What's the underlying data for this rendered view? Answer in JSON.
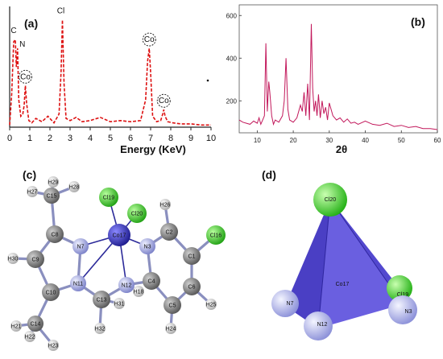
{
  "panels": {
    "a": "(a)",
    "b": "(b)",
    "c": "(c)",
    "d": "(d)"
  },
  "chart_data": [
    {
      "type": "line",
      "panel": "(a)",
      "xlabel": "Energy (KeV)",
      "ylabel": "",
      "xlim": [
        0,
        10
      ],
      "x_ticks": [
        "0",
        "1",
        "2",
        "3",
        "4",
        "5",
        "6",
        "7",
        "8",
        "9",
        "10"
      ],
      "line_color": "#dd1111",
      "line_style": "dashed",
      "annotations": [
        {
          "text": "C",
          "x": 0.28
        },
        {
          "text": "N",
          "x": 0.39
        },
        {
          "text": "Co",
          "x": 0.78,
          "circled": true
        },
        {
          "text": "Cl",
          "x": 2.62
        },
        {
          "text": "Co",
          "x": 6.93,
          "circled": true
        },
        {
          "text": "Co",
          "x": 7.65,
          "circled": true
        }
      ],
      "series": [
        {
          "x": [
            0.0,
            0.1,
            0.2,
            0.28,
            0.33,
            0.39,
            0.45,
            0.55,
            0.65,
            0.72,
            0.78,
            0.84,
            0.95,
            1.1,
            1.3,
            1.6,
            1.9,
            2.2,
            2.45,
            2.55,
            2.62,
            2.7,
            2.8,
            3.0,
            3.3,
            3.6,
            4.0,
            4.5,
            5.0,
            5.5,
            6.0,
            6.5,
            6.75,
            6.85,
            6.93,
            7.0,
            7.1,
            7.3,
            7.5,
            7.6,
            7.65,
            7.72,
            7.85,
            8.1,
            8.5,
            9.0,
            9.5,
            10.0
          ],
          "y": [
            0.02,
            0.3,
            0.78,
            0.8,
            0.55,
            0.72,
            0.25,
            0.1,
            0.12,
            0.2,
            0.38,
            0.22,
            0.06,
            0.04,
            0.08,
            0.05,
            0.1,
            0.04,
            0.12,
            0.5,
            0.98,
            0.4,
            0.08,
            0.06,
            0.09,
            0.05,
            0.06,
            0.09,
            0.05,
            0.06,
            0.05,
            0.06,
            0.25,
            0.6,
            0.72,
            0.5,
            0.1,
            0.05,
            0.06,
            0.12,
            0.16,
            0.1,
            0.05,
            0.04,
            0.03,
            0.03,
            0.02,
            0.02
          ]
        }
      ]
    },
    {
      "type": "line",
      "panel": "(b)",
      "xlabel": "2θ",
      "ylabel": "",
      "xlim": [
        5,
        60
      ],
      "ylim": [
        50,
        650
      ],
      "x_ticks": [
        10,
        20,
        30,
        40,
        50,
        60
      ],
      "y_ticks": [
        200,
        400,
        600
      ],
      "line_color": "#c2185b",
      "series": [
        {
          "x": [
            5,
            6,
            7,
            8,
            9,
            10,
            10.5,
            11,
            11.5,
            12,
            12.4,
            12.8,
            13.2,
            13.5,
            14,
            14.5,
            15,
            16,
            17,
            17.5,
            18,
            18.5,
            19,
            20,
            21,
            22,
            22.5,
            23,
            23.5,
            24,
            24.5,
            25,
            25.4,
            25.8,
            26.2,
            26.6,
            27,
            27.5,
            28,
            28.5,
            29,
            29.5,
            30,
            31,
            32,
            33,
            34,
            35,
            36,
            37,
            38,
            40,
            42,
            44,
            46,
            48,
            50,
            52,
            54,
            56,
            58,
            60
          ],
          "y": [
            110,
            100,
            95,
            90,
            105,
            95,
            120,
            90,
            110,
            130,
            470,
            150,
            290,
            240,
            130,
            90,
            110,
            100,
            130,
            200,
            400,
            160,
            110,
            100,
            120,
            180,
            150,
            240,
            130,
            280,
            110,
            560,
            260,
            150,
            200,
            130,
            230,
            120,
            200,
            140,
            170,
            110,
            190,
            130,
            110,
            120,
            100,
            115,
            95,
            100,
            90,
            105,
            90,
            85,
            95,
            80,
            85,
            75,
            80,
            70,
            70,
            65
          ]
        }
      ]
    }
  ],
  "molecule": {
    "atoms": [
      {
        "id": "cl19",
        "label": "Cl19",
        "kind": "cl"
      },
      {
        "id": "cl20",
        "label": "Cl20",
        "kind": "cl"
      },
      {
        "id": "co17",
        "label": "Co17",
        "kind": "co"
      },
      {
        "id": "h27",
        "label": "H27",
        "kind": "h"
      },
      {
        "id": "h29",
        "label": "H29",
        "kind": "h"
      },
      {
        "id": "h28",
        "label": "H28",
        "kind": "h"
      },
      {
        "id": "c15",
        "label": "C15",
        "kind": "c"
      },
      {
        "id": "c8",
        "label": "C8",
        "kind": "c"
      },
      {
        "id": "n7",
        "label": "N7",
        "kind": "n"
      },
      {
        "id": "c9",
        "label": "C9",
        "kind": "c"
      },
      {
        "id": "h30",
        "label": "H30",
        "kind": "h"
      },
      {
        "id": "c10",
        "label": "C10",
        "kind": "c"
      },
      {
        "id": "n11",
        "label": "N11",
        "kind": "n"
      },
      {
        "id": "c13",
        "label": "C13",
        "kind": "c"
      },
      {
        "id": "h31",
        "label": "H31",
        "kind": "h"
      },
      {
        "id": "n12",
        "label": "N12",
        "kind": "n"
      },
      {
        "id": "h18",
        "label": "H18",
        "kind": "h"
      },
      {
        "id": "h32",
        "label": "H32",
        "kind": "h"
      },
      {
        "id": "c14",
        "label": "C14",
        "kind": "c"
      },
      {
        "id": "h21",
        "label": "H21",
        "kind": "h"
      },
      {
        "id": "h22",
        "label": "H22",
        "kind": "h"
      },
      {
        "id": "h23",
        "label": "H23",
        "kind": "h"
      },
      {
        "id": "h26",
        "label": "H26",
        "kind": "h"
      },
      {
        "id": "n3",
        "label": "N3",
        "kind": "n"
      },
      {
        "id": "c2",
        "label": "C2",
        "kind": "c"
      },
      {
        "id": "c1",
        "label": "C1",
        "kind": "c"
      },
      {
        "id": "cl16",
        "label": "Cl16",
        "kind": "cl"
      },
      {
        "id": "c4",
        "label": "C4",
        "kind": "c"
      },
      {
        "id": "c5",
        "label": "C5",
        "kind": "c"
      },
      {
        "id": "c6",
        "label": "C6",
        "kind": "c"
      },
      {
        "id": "h25",
        "label": "H25",
        "kind": "h"
      },
      {
        "id": "h24",
        "label": "H24",
        "kind": "h"
      }
    ],
    "colors": {
      "c": "#6e6e6e",
      "n": "#9ea3dc",
      "h": "#d6d6d6",
      "cl": "#33cc22",
      "co": "#3333aa"
    }
  },
  "tetrahedron": {
    "labels": {
      "cl20": "Cl20",
      "co17": "Co17",
      "cl19": "Cl19",
      "n7": "N7",
      "n12": "N12",
      "n3": "N3"
    },
    "face_color": "#5b4fd6",
    "edge_color": "#3a2fb0"
  }
}
